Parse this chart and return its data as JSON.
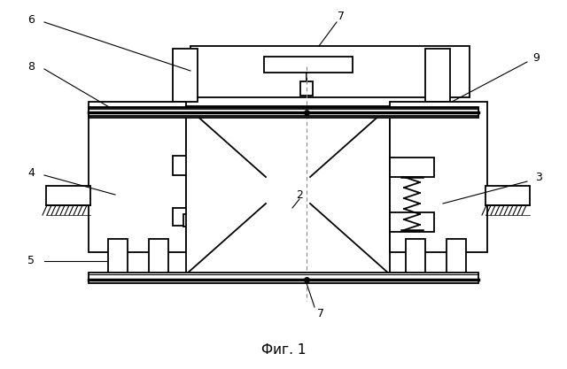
{
  "title": "Фиг. 1",
  "background_color": "#ffffff",
  "line_color": "#000000",
  "line_width": 1.3,
  "fig_width": 6.4,
  "fig_height": 4.17
}
